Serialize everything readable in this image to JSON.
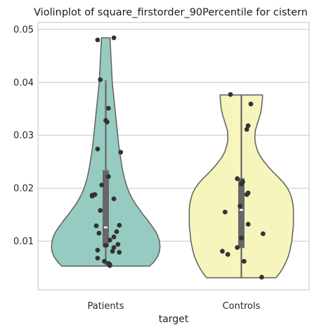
{
  "chart_data": {
    "type": "violin",
    "title": "Violinplot of square_firstorder_90Percentile for cistern",
    "xlabel": "target",
    "ylabel": "",
    "categories": [
      "Patients",
      "Controls"
    ],
    "ylim": [
      0.0008,
      0.0513
    ],
    "yticks": [
      0.01,
      0.02,
      0.03,
      0.04,
      0.05
    ],
    "ytick_labels": [
      "0.01",
      "0.02",
      "0.03",
      "0.04",
      "0.05"
    ],
    "grid": true,
    "colors": {
      "Patients": "#96cbc1",
      "Controls": "#f6f6bc",
      "outline": "#666666",
      "points": "#333333",
      "grid": "#cccccc",
      "box": "#676767"
    },
    "series": [
      {
        "name": "Patients",
        "min": 0.0053,
        "max": 0.0484,
        "q1": 0.0089,
        "median": 0.0126,
        "q3": 0.0234,
        "whisker_low": 0.0053,
        "whisker_high": 0.0404,
        "density_y": [
          0.0053,
          0.006,
          0.007,
          0.008,
          0.009,
          0.01,
          0.011,
          0.012,
          0.013,
          0.014,
          0.015,
          0.016,
          0.017,
          0.018,
          0.019,
          0.02,
          0.022,
          0.024,
          0.026,
          0.028,
          0.03,
          0.032,
          0.034,
          0.036,
          0.038,
          0.04,
          0.042,
          0.044,
          0.046,
          0.048,
          0.0484
        ],
        "density_w": [
          0.81,
          0.88,
          0.95,
          0.99,
          1.0,
          0.99,
          0.96,
          0.91,
          0.84,
          0.77,
          0.69,
          0.62,
          0.55,
          0.49,
          0.44,
          0.4,
          0.34,
          0.3,
          0.27,
          0.24,
          0.22,
          0.2,
          0.18,
          0.16,
          0.14,
          0.12,
          0.11,
          0.1,
          0.09,
          0.08,
          0.08
        ],
        "values": [
          0.0484,
          0.048,
          0.0405,
          0.0351,
          0.0328,
          0.0325,
          0.0274,
          0.0268,
          0.0222,
          0.0206,
          0.0188,
          0.0187,
          0.0185,
          0.018,
          0.0158,
          0.013,
          0.0129,
          0.0118,
          0.0115,
          0.0108,
          0.0102,
          0.0094,
          0.0092,
          0.0088,
          0.0083,
          0.0081,
          0.0079,
          0.0068,
          0.0062,
          0.0058,
          0.0056,
          0.0054
        ],
        "jitter": [
          0.06,
          -0.06,
          -0.04,
          0.02,
          0.0,
          0.01,
          -0.06,
          0.11,
          0.02,
          -0.03,
          -0.08,
          -0.1,
          -0.1,
          0.06,
          -0.04,
          0.1,
          -0.07,
          0.08,
          -0.05,
          0.06,
          0.03,
          0.09,
          0.0,
          0.06,
          -0.06,
          0.05,
          0.1,
          -0.06,
          -0.01,
          0.02,
          0.03,
          0.03
        ]
      },
      {
        "name": "Controls",
        "min": 0.0031,
        "max": 0.0376,
        "q1": 0.0087,
        "median": 0.0159,
        "q3": 0.0219,
        "whisker_low": 0.0031,
        "whisker_high": 0.0376,
        "density_y": [
          0.0031,
          0.004,
          0.005,
          0.006,
          0.007,
          0.008,
          0.009,
          0.01,
          0.011,
          0.012,
          0.013,
          0.014,
          0.015,
          0.016,
          0.017,
          0.018,
          0.019,
          0.02,
          0.021,
          0.022,
          0.023,
          0.024,
          0.025,
          0.026,
          0.027,
          0.028,
          0.029,
          0.03,
          0.031,
          0.032,
          0.033,
          0.034,
          0.035,
          0.036,
          0.037,
          0.0376
        ],
        "density_w": [
          0.64,
          0.71,
          0.77,
          0.82,
          0.86,
          0.89,
          0.91,
          0.93,
          0.94,
          0.95,
          0.96,
          0.96,
          0.96,
          0.96,
          0.95,
          0.93,
          0.9,
          0.85,
          0.78,
          0.69,
          0.59,
          0.5,
          0.42,
          0.35,
          0.3,
          0.27,
          0.25,
          0.25,
          0.26,
          0.29,
          0.32,
          0.35,
          0.37,
          0.38,
          0.39,
          0.39
        ],
        "values": [
          0.0377,
          0.0359,
          0.0318,
          0.0311,
          0.0218,
          0.0212,
          0.0208,
          0.0191,
          0.0188,
          0.0166,
          0.0155,
          0.0132,
          0.0114,
          0.0106,
          0.0088,
          0.0081,
          0.0075,
          0.0062,
          0.0032
        ],
        "jitter": [
          -0.08,
          0.07,
          0.05,
          0.04,
          -0.03,
          0.01,
          0.0,
          0.05,
          0.04,
          -0.01,
          -0.12,
          0.05,
          0.16,
          0.0,
          -0.03,
          -0.14,
          -0.1,
          0.02,
          0.15
        ]
      }
    ]
  }
}
